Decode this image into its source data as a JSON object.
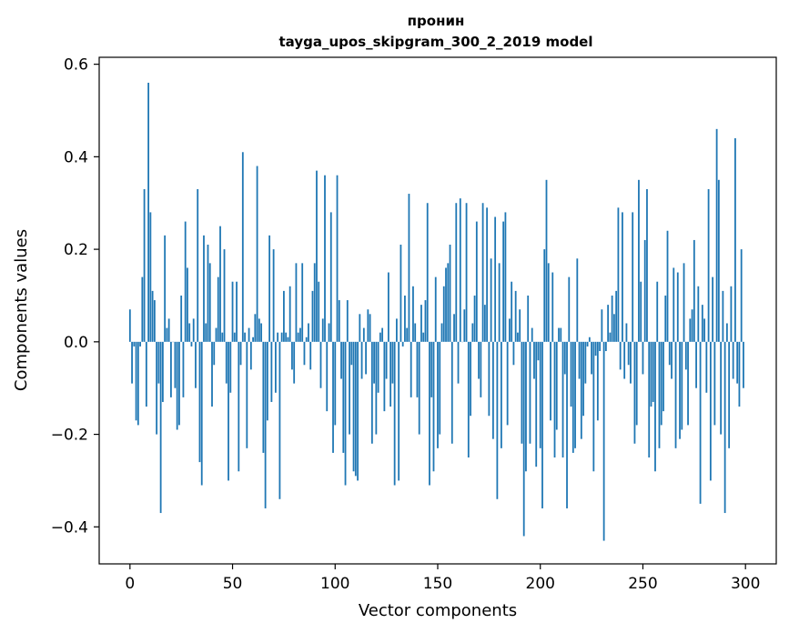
{
  "chart_data": {
    "type": "bar",
    "title": "пронин",
    "subtitle": "tayga_upos_skipgram_300_2_2019 model",
    "xlabel": "Vector components",
    "ylabel": "Components values",
    "xlim": [
      -15,
      315
    ],
    "ylim": [
      -0.48,
      0.615
    ],
    "x_ticks": [
      0,
      50,
      100,
      150,
      200,
      250,
      300
    ],
    "x_tick_labels": [
      "0",
      "50",
      "100",
      "150",
      "200",
      "250",
      "300"
    ],
    "y_ticks": [
      -0.4,
      -0.2,
      0.0,
      0.2,
      0.4,
      0.6
    ],
    "y_tick_labels": [
      "−0.4",
      "−0.2",
      "0.0",
      "0.2",
      "0.4",
      "0.6"
    ],
    "bar_color": "#1f77b4",
    "grid": false,
    "legend": "none",
    "values": [
      0.07,
      -0.09,
      -0.01,
      -0.17,
      -0.18,
      -0.01,
      0.14,
      0.33,
      -0.14,
      0.56,
      0.28,
      0.11,
      0.09,
      -0.2,
      -0.09,
      -0.37,
      -0.13,
      0.23,
      0.03,
      0.05,
      -0.12,
      0.0,
      -0.1,
      -0.19,
      -0.18,
      0.1,
      -0.12,
      0.26,
      0.16,
      0.04,
      -0.01,
      0.05,
      -0.1,
      0.33,
      -0.26,
      -0.31,
      0.23,
      0.04,
      0.21,
      0.17,
      -0.14,
      -0.05,
      0.03,
      0.14,
      0.25,
      0.02,
      0.2,
      -0.09,
      -0.3,
      -0.11,
      0.13,
      0.02,
      0.13,
      -0.28,
      -0.05,
      0.41,
      0.02,
      -0.23,
      0.03,
      -0.06,
      0.01,
      0.06,
      0.38,
      0.05,
      0.04,
      -0.24,
      -0.36,
      -0.17,
      0.23,
      -0.13,
      0.2,
      -0.11,
      0.02,
      -0.34,
      0.02,
      0.11,
      0.02,
      0.01,
      0.12,
      -0.06,
      -0.09,
      0.17,
      0.02,
      0.03,
      0.17,
      -0.05,
      0.01,
      0.04,
      -0.06,
      0.11,
      0.17,
      0.37,
      0.13,
      -0.1,
      0.05,
      0.36,
      -0.15,
      0.04,
      0.28,
      -0.24,
      -0.18,
      0.36,
      0.09,
      -0.08,
      -0.24,
      -0.31,
      0.09,
      -0.2,
      -0.05,
      -0.28,
      -0.29,
      -0.3,
      0.06,
      -0.08,
      0.03,
      -0.07,
      0.07,
      0.06,
      -0.22,
      -0.09,
      -0.2,
      -0.11,
      0.02,
      0.03,
      -0.15,
      -0.08,
      0.15,
      -0.14,
      -0.09,
      -0.31,
      0.05,
      -0.3,
      0.21,
      -0.01,
      0.1,
      0.03,
      0.32,
      -0.12,
      0.12,
      0.04,
      -0.12,
      -0.2,
      0.08,
      0.02,
      0.09,
      0.3,
      -0.31,
      -0.12,
      -0.28,
      0.14,
      -0.23,
      -0.2,
      0.04,
      0.12,
      0.16,
      0.17,
      0.21,
      -0.22,
      0.06,
      0.3,
      -0.09,
      0.31,
      0.0,
      0.07,
      0.3,
      -0.25,
      -0.16,
      0.04,
      0.1,
      0.26,
      -0.08,
      -0.12,
      0.3,
      0.08,
      0.29,
      -0.16,
      0.18,
      -0.21,
      0.27,
      -0.34,
      0.17,
      -0.23,
      0.26,
      0.28,
      -0.18,
      0.05,
      0.13,
      -0.05,
      0.11,
      0.02,
      0.07,
      -0.22,
      -0.42,
      -0.28,
      0.1,
      -0.22,
      0.03,
      -0.08,
      -0.27,
      -0.04,
      -0.23,
      -0.36,
      0.2,
      0.35,
      0.17,
      -0.17,
      0.15,
      -0.25,
      -0.19,
      0.03,
      0.03,
      -0.25,
      -0.07,
      -0.36,
      0.14,
      -0.14,
      -0.24,
      -0.23,
      0.18,
      -0.08,
      -0.21,
      -0.16,
      -0.09,
      -0.01,
      0.01,
      -0.07,
      -0.28,
      -0.03,
      -0.17,
      -0.02,
      0.07,
      -0.43,
      -0.02,
      0.08,
      0.02,
      0.1,
      0.06,
      0.11,
      0.29,
      -0.06,
      0.28,
      -0.08,
      0.04,
      -0.05,
      -0.09,
      0.28,
      -0.22,
      -0.18,
      0.35,
      0.13,
      -0.07,
      0.22,
      0.33,
      -0.25,
      -0.14,
      -0.13,
      -0.28,
      0.13,
      -0.23,
      -0.18,
      -0.15,
      0.1,
      0.24,
      -0.05,
      -0.08,
      0.16,
      -0.23,
      0.15,
      -0.21,
      -0.19,
      0.17,
      -0.06,
      -0.18,
      0.05,
      0.07,
      0.22,
      -0.1,
      0.12,
      -0.35,
      0.08,
      0.05,
      -0.11,
      0.33,
      -0.3,
      0.14,
      -0.18,
      0.46,
      0.35,
      -0.2,
      0.11,
      -0.37,
      0.04,
      -0.23,
      0.12,
      -0.08,
      0.44,
      -0.09,
      -0.14,
      0.2,
      -0.1
    ]
  }
}
